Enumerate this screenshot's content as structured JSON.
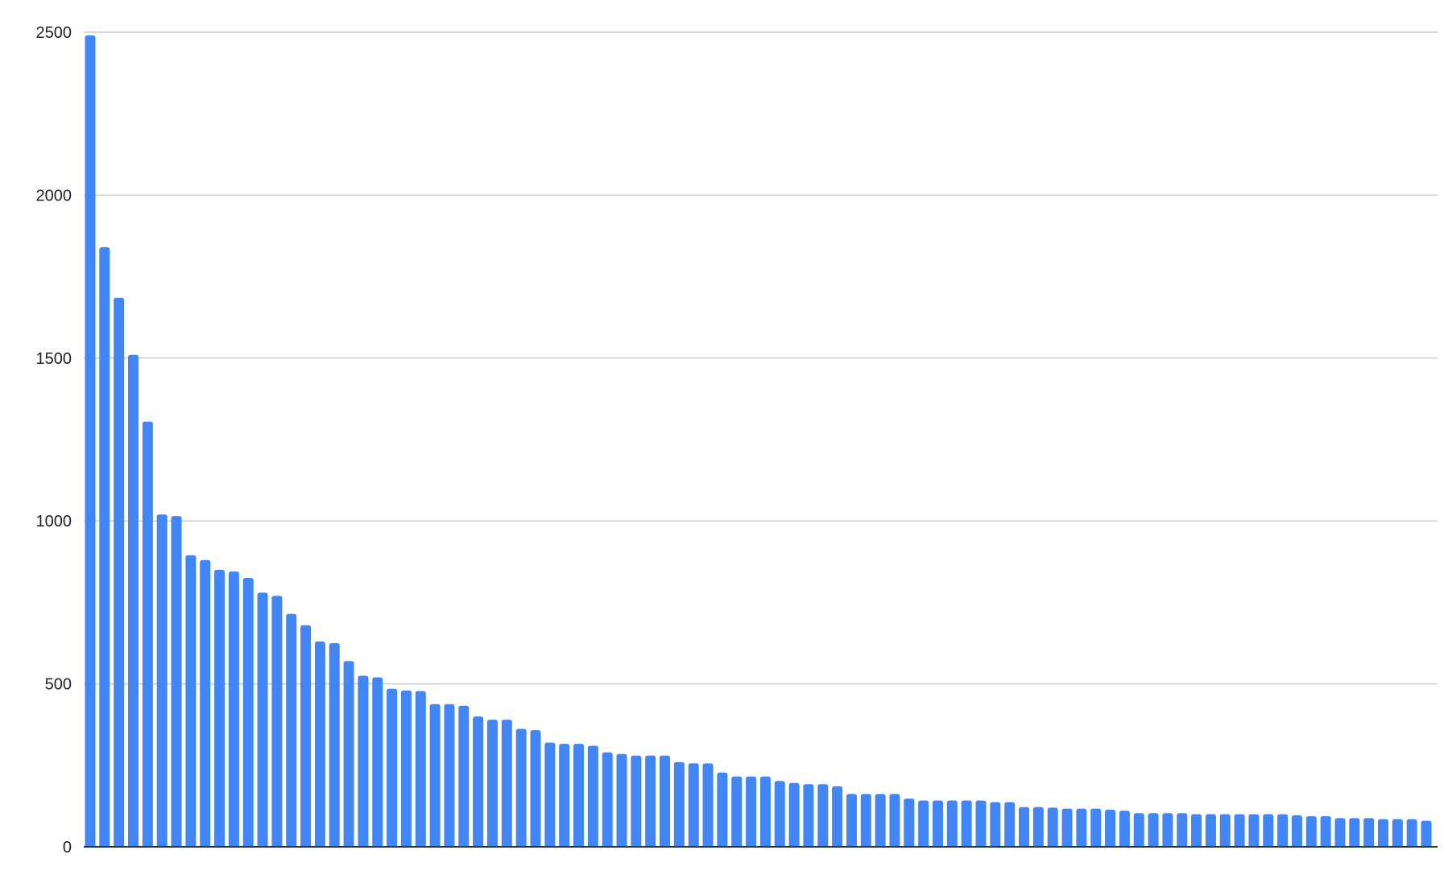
{
  "chart_data": {
    "type": "bar",
    "title": "",
    "xlabel": "",
    "ylabel": "",
    "ylim": [
      0,
      2500
    ],
    "yticks": [
      "0",
      "500",
      "1000",
      "1500",
      "2000",
      "2500"
    ],
    "grid": true,
    "legend": "none",
    "bar_color": "#4285f4",
    "values": [
      2490,
      1840,
      1685,
      1510,
      1305,
      1020,
      1015,
      895,
      880,
      850,
      845,
      825,
      780,
      770,
      715,
      680,
      630,
      625,
      570,
      525,
      520,
      485,
      480,
      478,
      438,
      438,
      433,
      400,
      390,
      390,
      362,
      358,
      320,
      316,
      316,
      310,
      290,
      285,
      280,
      280,
      280,
      260,
      256,
      256,
      228,
      216,
      216,
      216,
      202,
      196,
      192,
      192,
      186,
      162,
      162,
      162,
      162,
      148,
      142,
      142,
      142,
      142,
      142,
      137,
      137,
      122,
      122,
      120,
      117,
      117,
      117,
      114,
      111,
      103,
      103,
      103,
      103,
      100,
      100,
      100,
      100,
      100,
      100,
      100,
      97,
      94,
      94,
      88,
      88,
      88,
      85,
      85,
      85,
      80
    ]
  }
}
